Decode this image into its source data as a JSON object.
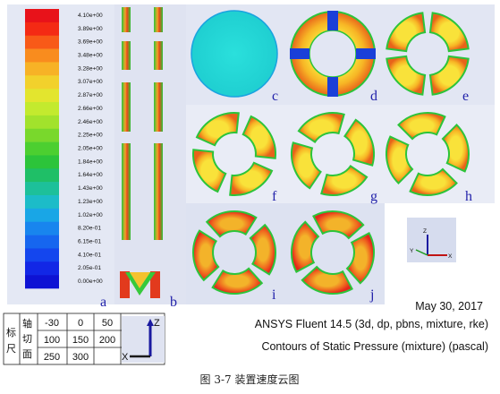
{
  "colorbar": {
    "ticks": [
      "4.10e+00",
      "3.89e+00",
      "3.69e+00",
      "3.48e+00",
      "3.28e+00",
      "3.07e+00",
      "2.87e+00",
      "2.66e+00",
      "2.46e+00",
      "2.25e+00",
      "2.05e+00",
      "1.84e+00",
      "1.64e+00",
      "1.43e+00",
      "1.23e+00",
      "1.02e+00",
      "8.20e-01",
      "6.15e-01",
      "4.10e-01",
      "2.05e-01",
      "0.00e+00"
    ],
    "colors": [
      "#e8121a",
      "#f42a14",
      "#f85a18",
      "#f98c1e",
      "#f7b226",
      "#f2d12c",
      "#e3e52e",
      "#c3ea2e",
      "#a2e22c",
      "#79d82c",
      "#4ccf30",
      "#2cc43a",
      "#1fbf67",
      "#1dc09a",
      "#1cbcc8",
      "#19a6e6",
      "#1885ee",
      "#1666ef",
      "#1446ee",
      "#1227e6",
      "#0e12d4"
    ]
  },
  "labels": {
    "a": "a",
    "b": "b",
    "c": "c",
    "d": "d",
    "e": "e",
    "f": "f",
    "g": "g",
    "h": "h",
    "i": "i",
    "j": "j"
  },
  "info": {
    "date": "May 30, 2017",
    "software": "ANSYS Fluent 14.5 (3d, dp, pbns, mixture, rke)",
    "contour": "Contours of Static Pressure (mixture)  (pascal)"
  },
  "table": {
    "row_header_1": "标",
    "row_header_2": "尺",
    "col_header_1": "轴",
    "col_header_2": "切",
    "col_header_3": "面",
    "rows": [
      [
        "-30",
        "0",
        "50"
      ],
      [
        "100",
        "150",
        "200"
      ],
      [
        "250",
        "300",
        ""
      ]
    ]
  },
  "axes_labels": {
    "z": "Z",
    "y": "Y",
    "x": "X"
  },
  "caption": "图 3-7 装置速度云图"
}
